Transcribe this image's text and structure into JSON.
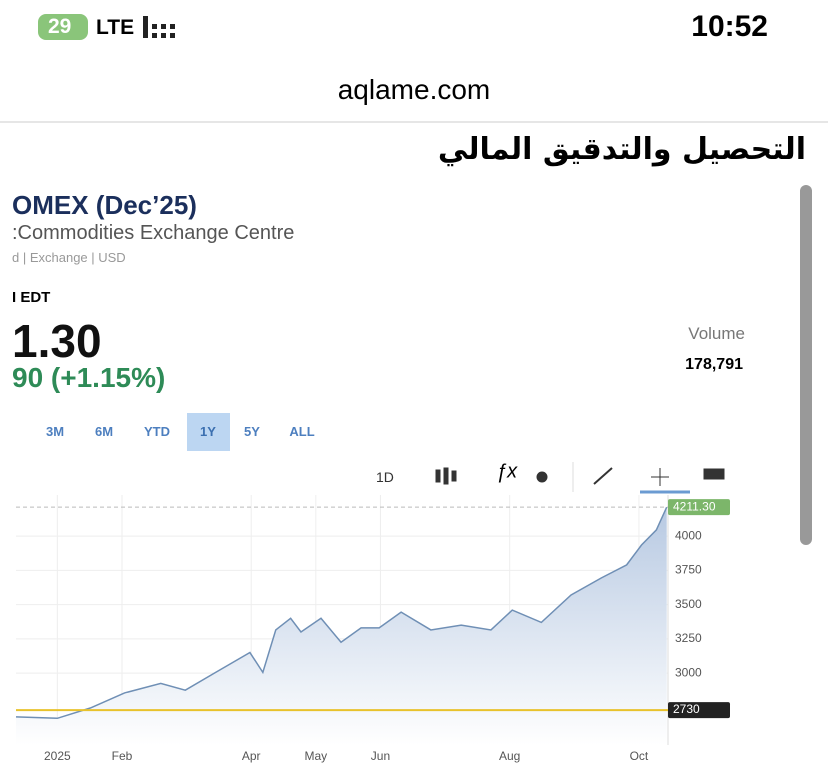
{
  "status_bar": {
    "battery": "29",
    "network": "LTE",
    "time": "10:52"
  },
  "browser": {
    "url": "aqlame.com"
  },
  "page": {
    "heading": "التحصيل والتدقيق المالي"
  },
  "quote": {
    "title": "OMEX (Dec’25)",
    "exchange": ":Commodities Exchange Centre",
    "meta": "d | Exchange | USD",
    "time_zone": "I EDT",
    "price": "1.30",
    "change": "90 (+1.15%)",
    "volume_label": "Volume",
    "volume": "178,791"
  },
  "ranges": {
    "buttons": [
      "3M",
      "6M",
      "YTD",
      "1Y",
      "5Y",
      "ALL"
    ],
    "selected": "1Y"
  },
  "toolbar": {
    "interval": "1D"
  },
  "chart_data": {
    "type": "area",
    "x": [
      -0.64,
      0,
      0.51,
      1.04,
      1.6,
      1.98,
      2.45,
      2.98,
      3.18,
      3.38,
      3.61,
      3.77,
      4.08,
      4.39,
      4.7,
      4.98,
      5.32,
      5.78,
      6.25,
      6.71,
      7.04,
      7.49,
      7.95,
      8.42,
      8.81,
      9.04,
      9.27,
      9.43
    ],
    "values": [
      2680,
      2670,
      2745,
      2855,
      2925,
      2875,
      3005,
      3150,
      3005,
      3315,
      3400,
      3300,
      3400,
      3225,
      3330,
      3330,
      3445,
      3315,
      3350,
      3315,
      3460,
      3370,
      3570,
      3695,
      3790,
      3935,
      4045,
      4211.3
    ],
    "color": "#6f8fb5",
    "xlim": [
      -0.64,
      9.45
    ],
    "ylim": [
      2475,
      4300
    ],
    "xticks": [
      {
        "value": 0,
        "label": "2025"
      },
      {
        "value": 1,
        "label": "Feb"
      },
      {
        "value": 3,
        "label": "Apr"
      },
      {
        "value": 4,
        "label": "May"
      },
      {
        "value": 5,
        "label": "Jun"
      },
      {
        "value": 7,
        "label": "Aug"
      },
      {
        "value": 9,
        "label": "Oct"
      }
    ],
    "yticks": [
      3000,
      3250,
      3500,
      3750,
      4000
    ],
    "grid": true,
    "markers": [
      {
        "value": 4211.3,
        "label": "4211.30",
        "color": "#7cb66a"
      },
      {
        "value": 2730,
        "label": "2730",
        "color": "#e8c22c"
      }
    ]
  }
}
